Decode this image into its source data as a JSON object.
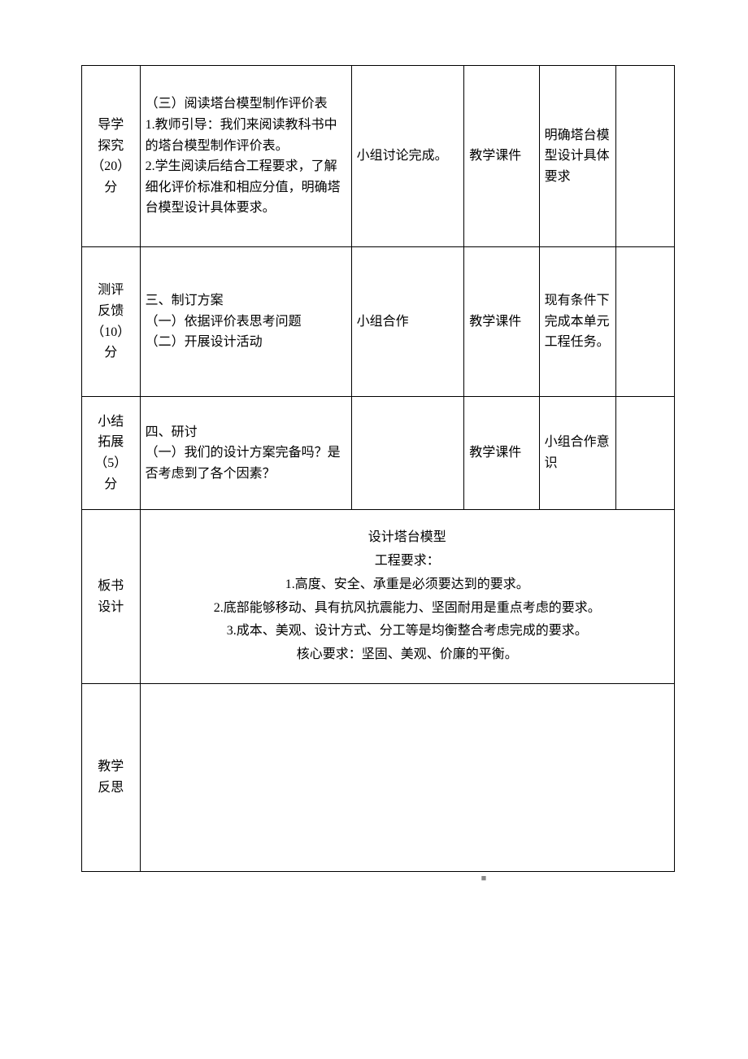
{
  "rows": [
    {
      "label": "导学\n探究\n（20）\n分",
      "content": "（三）阅读塔台模型制作评价表\n1.教师引导：我们来阅读教科书中的塔台模型制作评价表。\n2.学生阅读后结合工程要求，了解细化评价标准和相应分值，明确塔台模型设计具体要求。",
      "activity": "小组讨论完成。",
      "resource": "教学课件",
      "goal": "明确塔台模型设计具体要求",
      "last": ""
    },
    {
      "label": "测评\n反馈\n（10）\n分",
      "content": "三、制订方案\n（一）依据评价表思考问题\n（二）开展设计活动",
      "activity": "小组合作",
      "resource": "教学课件",
      "goal": "现有条件下完成本单元工程任务。",
      "last": ""
    },
    {
      "label": "小结\n拓展\n（5）\n分",
      "content": "四、研讨\n（一）我们的设计方案完备吗？是否考虑到了各个因素？",
      "activity": "",
      "resource": "教学课件",
      "goal": "小组合作意识",
      "last": ""
    }
  ],
  "board": {
    "label": "板书\n设计",
    "lines": [
      "设计塔台模型",
      "工程要求：",
      "1.高度、安全、承重是必须要达到的要求。",
      "2.底部能够移动、具有抗风抗震能力、坚固耐用是重点考虑的要求。",
      "3.成本、美观、设计方式、分工等是均衡整合考虑完成的要求。",
      "核心要求：坚固、美观、价廉的平衡。"
    ]
  },
  "reflection": {
    "label": "教学\n反思",
    "content": ""
  },
  "marker": "■"
}
